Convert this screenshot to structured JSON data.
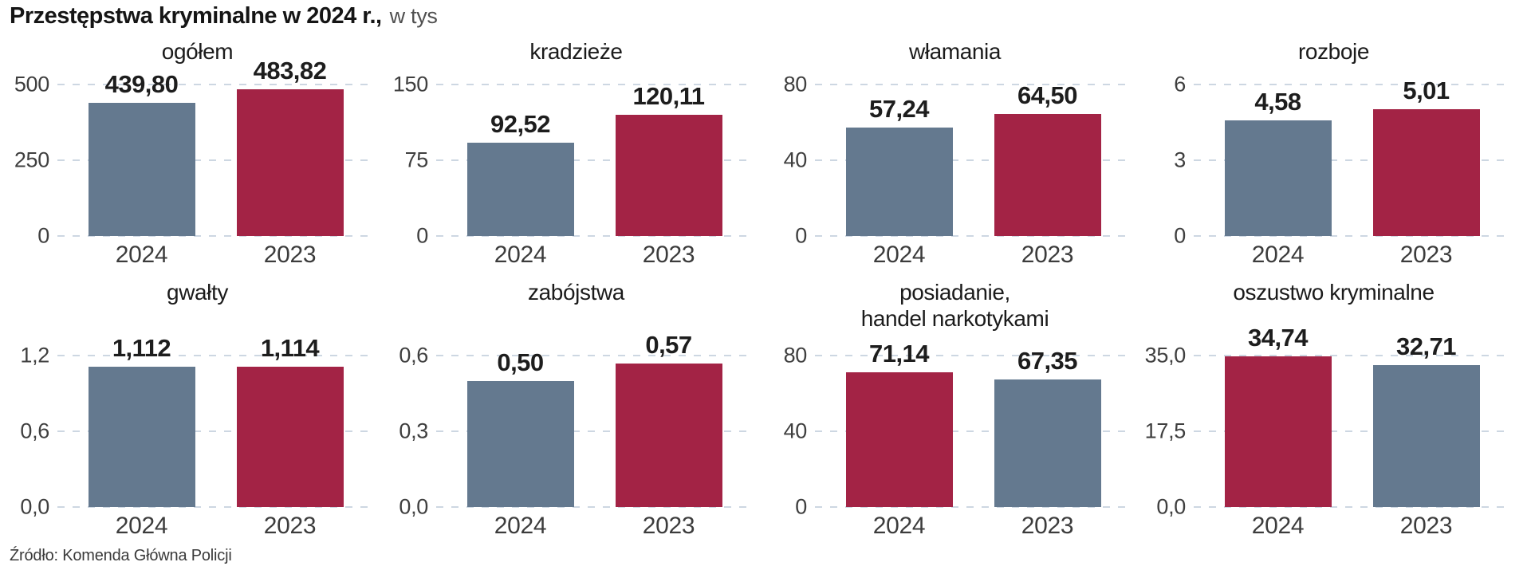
{
  "header": {
    "title": "Przestępstwa kryminalne w 2024 r.,",
    "subtitle": "w tys"
  },
  "footer": {
    "source": "Źródło: Komenda Główna Policji"
  },
  "colors": {
    "bar_blue": "#64798f",
    "bar_red": "#a32345",
    "gridline": "#cdd7e2"
  },
  "chart_data": [
    {
      "type": "bar",
      "title_lines": [
        "ogółem"
      ],
      "categories": [
        "2024",
        "2023"
      ],
      "values": [
        439.8,
        483.82
      ],
      "value_labels": [
        "439,80",
        "483,82"
      ],
      "bar_colors": [
        "blue",
        "red"
      ],
      "y_ticks": [
        "500",
        "250",
        "0"
      ],
      "ylim": [
        0,
        500
      ],
      "grid": true,
      "legend": "none"
    },
    {
      "type": "bar",
      "title_lines": [
        "kradzieże"
      ],
      "categories": [
        "2024",
        "2023"
      ],
      "values": [
        92.52,
        120.11
      ],
      "value_labels": [
        "92,52",
        "120,11"
      ],
      "bar_colors": [
        "blue",
        "red"
      ],
      "y_ticks": [
        "150",
        "75",
        "0"
      ],
      "ylim": [
        0,
        150
      ],
      "grid": true,
      "legend": "none"
    },
    {
      "type": "bar",
      "title_lines": [
        "włamania"
      ],
      "categories": [
        "2024",
        "2023"
      ],
      "values": [
        57.24,
        64.5
      ],
      "value_labels": [
        "57,24",
        "64,50"
      ],
      "bar_colors": [
        "blue",
        "red"
      ],
      "y_ticks": [
        "80",
        "40",
        "0"
      ],
      "ylim": [
        0,
        80
      ],
      "grid": true,
      "legend": "none"
    },
    {
      "type": "bar",
      "title_lines": [
        "rozboje"
      ],
      "categories": [
        "2024",
        "2023"
      ],
      "values": [
        4.58,
        5.01
      ],
      "value_labels": [
        "4,58",
        "5,01"
      ],
      "bar_colors": [
        "blue",
        "red"
      ],
      "y_ticks": [
        "6",
        "3",
        "0"
      ],
      "ylim": [
        0,
        6
      ],
      "grid": true,
      "legend": "none"
    },
    {
      "type": "bar",
      "title_lines": [
        "gwałty"
      ],
      "categories": [
        "2024",
        "2023"
      ],
      "values": [
        1.112,
        1.114
      ],
      "value_labels": [
        "1,112",
        "1,114"
      ],
      "bar_colors": [
        "blue",
        "red"
      ],
      "y_ticks": [
        "1,2",
        "0,6",
        "0,0"
      ],
      "ylim": [
        0,
        1.2
      ],
      "grid": true,
      "legend": "none"
    },
    {
      "type": "bar",
      "title_lines": [
        "zabójstwa"
      ],
      "categories": [
        "2024",
        "2023"
      ],
      "values": [
        0.5,
        0.57
      ],
      "value_labels": [
        "0,50",
        "0,57"
      ],
      "bar_colors": [
        "blue",
        "red"
      ],
      "y_ticks": [
        "0,6",
        "0,3",
        "0,0"
      ],
      "ylim": [
        0,
        0.6
      ],
      "grid": true,
      "legend": "none"
    },
    {
      "type": "bar",
      "title_lines": [
        "posiadanie,",
        "handel narkotykami"
      ],
      "categories": [
        "2024",
        "2023"
      ],
      "values": [
        71.14,
        67.35
      ],
      "value_labels": [
        "71,14",
        "67,35"
      ],
      "bar_colors": [
        "red",
        "blue"
      ],
      "y_ticks": [
        "80",
        "40",
        "0"
      ],
      "ylim": [
        0,
        80
      ],
      "grid": true,
      "legend": "none"
    },
    {
      "type": "bar",
      "title_lines": [
        "oszustwo kryminalne"
      ],
      "categories": [
        "2024",
        "2023"
      ],
      "values": [
        34.74,
        32.71
      ],
      "value_labels": [
        "34,74",
        "32,71"
      ],
      "bar_colors": [
        "red",
        "blue"
      ],
      "y_ticks": [
        "35,0",
        "17,5",
        "0,0"
      ],
      "ylim": [
        0,
        35
      ],
      "grid": true,
      "legend": "none"
    }
  ]
}
